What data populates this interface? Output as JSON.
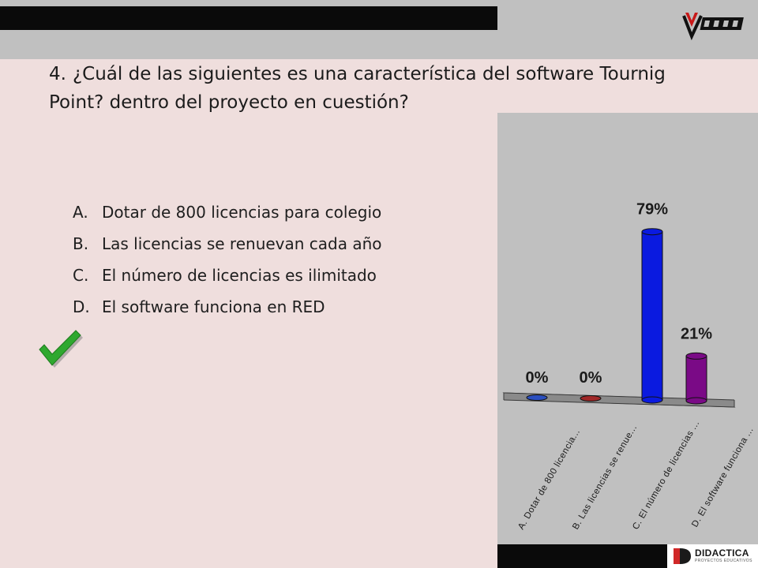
{
  "question": {
    "number": "4.",
    "text": "¿Cuál de las siguientes es una característica del software Tournig Point? dentro del proyecto en cuestión?"
  },
  "answers": [
    {
      "letter": "A.",
      "text": "Dotar de 800 licencias para colegio"
    },
    {
      "letter": "B.",
      "text": "Las licencias se renuevan cada año"
    },
    {
      "letter": "C.",
      "text": "El número de licencias es ilimitado"
    },
    {
      "letter": "D.",
      "text": "El software funciona en RED"
    }
  ],
  "correct_answer": "C.",
  "icons": {
    "check": "checkmark-icon",
    "header_logo": "publisher-logo-icon",
    "footer_logo": "didactica-logo-icon"
  },
  "footer": {
    "brand": "DIDACTICA",
    "tagline": "PROYECTOS EDUCATIVOS"
  },
  "chart_data": {
    "type": "bar",
    "categories": [
      "A. Dotar de 800 licencia...",
      "B. Las licencias se renue...",
      "C. El número de licencias ...",
      "D. El software funciona ..."
    ],
    "values": [
      0,
      0,
      79,
      21
    ],
    "value_labels": [
      "0%",
      "0%",
      "79%",
      "21%"
    ],
    "colors": [
      "#2b4fbf",
      "#a02828",
      "#0a1ae0",
      "#7a0a86"
    ],
    "ylim": [
      0,
      100
    ],
    "grid": false
  },
  "colors": {
    "background": "#efdedd",
    "panel": "#c0c0c0",
    "check": "#2fa82f"
  }
}
